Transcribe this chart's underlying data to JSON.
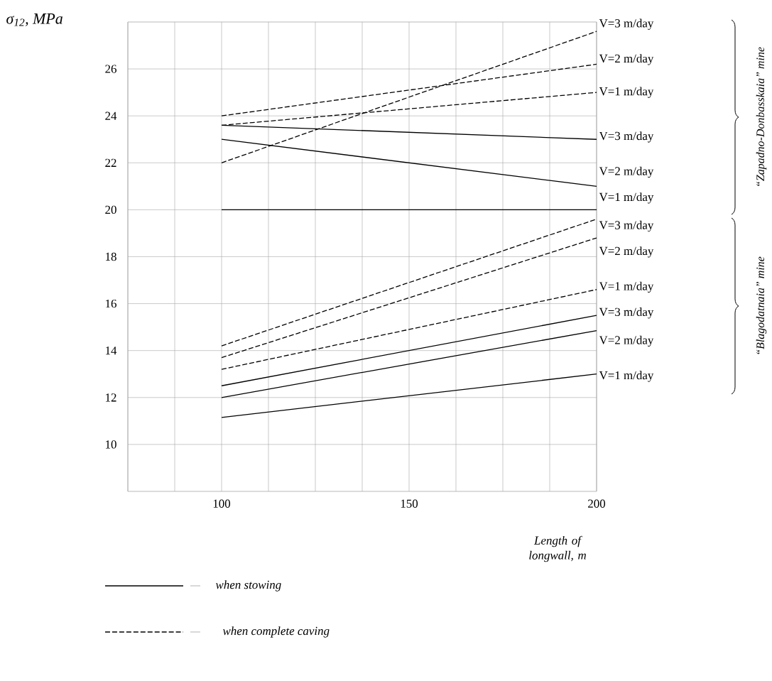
{
  "chart_data": {
    "type": "line",
    "ylabel": "σ$_{12}$, MPa",
    "xlabel": "Length of longwall, m",
    "xlim": [
      75,
      200
    ],
    "ylim": [
      8,
      28
    ],
    "xticks": [
      {
        "value": 75,
        "label": null
      },
      {
        "value": 87.5,
        "label": null
      },
      100,
      {
        "value": 112.5,
        "label": null
      },
      {
        "value": 125,
        "label": null
      },
      {
        "value": 137.5,
        "label": null
      },
      150,
      {
        "value": 162.5,
        "label": null
      },
      {
        "value": 175,
        "label": null
      },
      {
        "value": 187.5,
        "label": null
      },
      200
    ],
    "yticks": [
      10,
      12,
      14,
      16,
      18,
      20,
      22,
      24,
      26
    ],
    "grid": true,
    "marker": "none",
    "x": [
      100,
      200
    ],
    "series": [
      {
        "name": "V=3 m/day",
        "color": "#000000",
        "line_style": "dashed",
        "values": [
          22.0,
          27.6
        ]
      },
      {
        "name": "V=2 m/day",
        "color": "#000000",
        "line_style": "dashed",
        "values": [
          24.0,
          26.2
        ]
      },
      {
        "name": "V=1 m/day",
        "color": "#000000",
        "line_style": "dashed",
        "values": [
          23.6,
          25.0
        ]
      },
      {
        "name": "V=3 m/day",
        "color": "#000000",
        "line_style": "solid",
        "values": [
          23.6,
          23.0
        ]
      },
      {
        "name": "V=2 m/day",
        "color": "#000000",
        "line_style": "solid",
        "values": [
          23.0,
          21.0
        ]
      },
      {
        "name": "V=1 m/day",
        "color": "#000000",
        "line_style": "solid",
        "values": [
          20.0,
          20.0
        ]
      },
      {
        "name": "V=3 m/day",
        "color": "#000000",
        "line_style": "dashed",
        "values": [
          14.2,
          19.6
        ]
      },
      {
        "name": "V=2 m/day",
        "color": "#000000",
        "line_style": "dashed",
        "values": [
          13.7,
          18.8
        ]
      },
      {
        "name": "V=1 m/day",
        "color": "#000000",
        "line_style": "dashed",
        "values": [
          13.2,
          16.6
        ]
      },
      {
        "name": "V=3 m/day",
        "color": "#000000",
        "line_style": "solid",
        "values": [
          12.5,
          15.5
        ]
      },
      {
        "name": "V=2 m/day",
        "color": "#000000",
        "line_style": "solid",
        "values": [
          12.0,
          14.85
        ]
      },
      {
        "name": "V=1 m/day",
        "color": "#000000",
        "line_style": "solid",
        "values": [
          11.15,
          13.0
        ]
      }
    ],
    "annotations": [
      "when stowing",
      "when complete caving",
      "“Zapadno-Donbasskaia” mine",
      "“Blagodatnaia” mine"
    ]
  }
}
